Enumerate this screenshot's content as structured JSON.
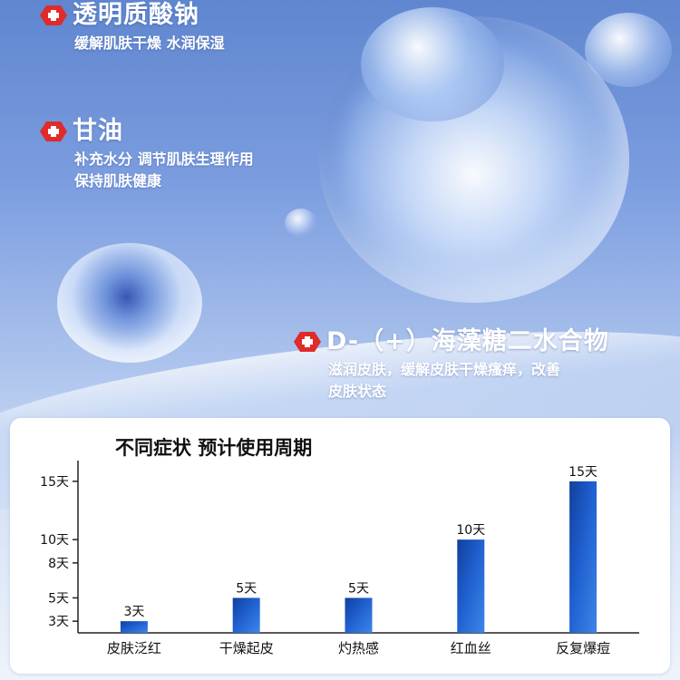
{
  "features": [
    {
      "title": "透明质酸钠",
      "desc": [
        "缓解肌肤干燥 水润保湿"
      ]
    },
    {
      "title": "甘油",
      "desc": [
        "补充水分 调节肌肤生理作用",
        "保持肌肤健康"
      ]
    },
    {
      "title": "D-（+）海藻糖二水合物",
      "desc": [
        "滋润皮肤，缓解皮肤干燥瘙痒，改善",
        "皮肤状态"
      ]
    }
  ],
  "icons": {
    "feature_bullet": "medical-cross-icon"
  },
  "colors": {
    "accent_red": "#e02b2b",
    "bar_blue": "#1f5fcf",
    "bar_dark": "#123f9c"
  },
  "chart_data": {
    "type": "bar",
    "title": "不同症状 预计使用周期",
    "categories": [
      "皮肤泛红",
      "干燥起皮",
      "灼热感",
      "红血丝",
      "反复爆痘"
    ],
    "values": [
      3,
      5,
      5,
      10,
      15
    ],
    "data_labels": [
      "3天",
      "5天",
      "5天",
      "10天",
      "15天"
    ],
    "yticks": [
      3,
      5,
      8,
      10,
      15
    ],
    "ytick_labels": [
      "3天",
      "5天",
      "8天",
      "10天",
      "15天"
    ],
    "ylim": [
      2,
      16
    ],
    "xlabel": "",
    "ylabel": "",
    "grid": false
  }
}
